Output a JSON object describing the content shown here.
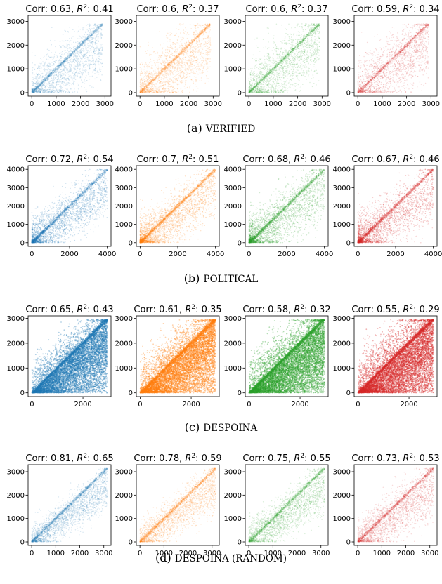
{
  "figure": {
    "rows": [
      {
        "caption_prefix": "(a) ",
        "caption_name": "VERIFIED"
      },
      {
        "caption_prefix": "(b) ",
        "caption_name": "POLITICAL"
      },
      {
        "caption_prefix": "(c) ",
        "caption_name": "DESPOINA"
      },
      {
        "caption_prefix": "(d) ",
        "caption_name": "DESPOINA (RANDOM)"
      }
    ],
    "colors": [
      "#1f77b4",
      "#ff7f0e",
      "#2ca02c",
      "#d62728"
    ]
  },
  "chart_data": [
    {
      "type": "scatter",
      "row": 0,
      "col": 0,
      "color": "#1f77b4",
      "title_prefix": "Corr: 0.63, ",
      "title_sup_var": "R",
      "title_exp": "2",
      "title_suffix": ": 0.41",
      "corr": 0.63,
      "r2": 0.41,
      "xlim": [
        -150,
        3250
      ],
      "ylim": [
        -150,
        3250
      ],
      "xticks": [
        "0",
        "1000",
        "2000",
        "3000"
      ],
      "yticks": [
        "0",
        "1000",
        "2000",
        "3000"
      ],
      "x_tick_values": [
        0,
        1000,
        2000,
        3000
      ],
      "y_tick_values": [
        0,
        1000,
        2000,
        3000
      ],
      "n_points": 2500,
      "max_value": 2900
    },
    {
      "type": "scatter",
      "row": 0,
      "col": 1,
      "color": "#ff7f0e",
      "title_prefix": "Corr: 0.6, ",
      "title_sup_var": "R",
      "title_exp": "2",
      "title_suffix": ": 0.37",
      "corr": 0.6,
      "r2": 0.37,
      "xlim": [
        -150,
        3250
      ],
      "ylim": [
        -150,
        3250
      ],
      "xticks": [
        "0",
        "1000",
        "2000",
        "3000"
      ],
      "yticks": [
        "0",
        "1000",
        "2000",
        "3000"
      ],
      "x_tick_values": [
        0,
        1000,
        2000,
        3000
      ],
      "y_tick_values": [
        0,
        1000,
        2000,
        3000
      ],
      "n_points": 2500,
      "max_value": 2900
    },
    {
      "type": "scatter",
      "row": 0,
      "col": 2,
      "color": "#2ca02c",
      "title_prefix": "Corr: 0.6, ",
      "title_sup_var": "R",
      "title_exp": "2",
      "title_suffix": ": 0.37",
      "corr": 0.6,
      "r2": 0.37,
      "xlim": [
        -150,
        3250
      ],
      "ylim": [
        -150,
        3250
      ],
      "xticks": [
        "0",
        "1000",
        "2000",
        "3000"
      ],
      "yticks": [
        "0",
        "1000",
        "2000",
        "3000"
      ],
      "x_tick_values": [
        0,
        1000,
        2000,
        3000
      ],
      "y_tick_values": [
        0,
        1000,
        2000,
        3000
      ],
      "n_points": 2500,
      "max_value": 2900
    },
    {
      "type": "scatter",
      "row": 0,
      "col": 3,
      "color": "#d62728",
      "title_prefix": "Corr: 0.59, ",
      "title_sup_var": "R",
      "title_exp": "2",
      "title_suffix": ": 0.34",
      "corr": 0.59,
      "r2": 0.34,
      "xlim": [
        -150,
        3250
      ],
      "ylim": [
        -150,
        3250
      ],
      "xticks": [
        "0",
        "1000",
        "2000",
        "3000"
      ],
      "yticks": [
        "0",
        "1000",
        "2000",
        "3000"
      ],
      "x_tick_values": [
        0,
        1000,
        2000,
        3000
      ],
      "y_tick_values": [
        0,
        1000,
        2000,
        3000
      ],
      "n_points": 2500,
      "max_value": 2900
    },
    {
      "type": "scatter",
      "row": 1,
      "col": 0,
      "color": "#1f77b4",
      "title_prefix": "Corr: 0.72, ",
      "title_sup_var": "R",
      "title_exp": "2",
      "title_suffix": ": 0.54",
      "corr": 0.72,
      "r2": 0.54,
      "xlim": [
        -200,
        4200
      ],
      "ylim": [
        -200,
        4200
      ],
      "xticks": [
        "0",
        "2000",
        "4000"
      ],
      "yticks": [
        "0",
        "1000",
        "2000",
        "3000",
        "4000"
      ],
      "x_tick_values": [
        0,
        2000,
        4000
      ],
      "y_tick_values": [
        0,
        1000,
        2000,
        3000,
        4000
      ],
      "n_points": 3500,
      "max_value": 4000
    },
    {
      "type": "scatter",
      "row": 1,
      "col": 1,
      "color": "#ff7f0e",
      "title_prefix": "Corr: 0.7, ",
      "title_sup_var": "R",
      "title_exp": "2",
      "title_suffix": ": 0.51",
      "corr": 0.7,
      "r2": 0.51,
      "xlim": [
        -200,
        4200
      ],
      "ylim": [
        -200,
        4200
      ],
      "xticks": [
        "0",
        "2000",
        "4000"
      ],
      "yticks": [
        "0",
        "1000",
        "2000",
        "3000",
        "4000"
      ],
      "x_tick_values": [
        0,
        2000,
        4000
      ],
      "y_tick_values": [
        0,
        1000,
        2000,
        3000,
        4000
      ],
      "n_points": 3500,
      "max_value": 4000
    },
    {
      "type": "scatter",
      "row": 1,
      "col": 2,
      "color": "#2ca02c",
      "title_prefix": "Corr: 0.68, ",
      "title_sup_var": "R",
      "title_exp": "2",
      "title_suffix": ": 0.46",
      "corr": 0.68,
      "r2": 0.46,
      "xlim": [
        -200,
        4200
      ],
      "ylim": [
        -200,
        4200
      ],
      "xticks": [
        "0",
        "2000",
        "4000"
      ],
      "yticks": [
        "0",
        "1000",
        "2000",
        "3000",
        "4000"
      ],
      "x_tick_values": [
        0,
        2000,
        4000
      ],
      "y_tick_values": [
        0,
        1000,
        2000,
        3000,
        4000
      ],
      "n_points": 3500,
      "max_value": 4000
    },
    {
      "type": "scatter",
      "row": 1,
      "col": 3,
      "color": "#d62728",
      "title_prefix": "Corr: 0.67, ",
      "title_sup_var": "R",
      "title_exp": "2",
      "title_suffix": ": 0.46",
      "corr": 0.67,
      "r2": 0.46,
      "xlim": [
        -200,
        4200
      ],
      "ylim": [
        -200,
        4200
      ],
      "xticks": [
        "0",
        "2000",
        "4000"
      ],
      "yticks": [
        "0",
        "1000",
        "2000",
        "3000",
        "4000"
      ],
      "x_tick_values": [
        0,
        2000,
        4000
      ],
      "y_tick_values": [
        0,
        1000,
        2000,
        3000,
        4000
      ],
      "n_points": 3500,
      "max_value": 4000
    },
    {
      "type": "scatter",
      "row": 2,
      "col": 0,
      "color": "#1f77b4",
      "title_prefix": "Corr: 0.65, ",
      "title_sup_var": "R",
      "title_exp": "2",
      "title_suffix": ": 0.43",
      "corr": 0.65,
      "r2": 0.43,
      "xlim": [
        -150,
        3100
      ],
      "ylim": [
        -150,
        3100
      ],
      "xticks": [
        "0",
        "2000"
      ],
      "yticks": [
        "0",
        "1000",
        "2000",
        "3000"
      ],
      "x_tick_values": [
        0,
        2000
      ],
      "y_tick_values": [
        0,
        1000,
        2000,
        3000
      ],
      "n_points": 9000,
      "max_value": 2950
    },
    {
      "type": "scatter",
      "row": 2,
      "col": 1,
      "color": "#ff7f0e",
      "title_prefix": "Corr: 0.61, ",
      "title_sup_var": "R",
      "title_exp": "2",
      "title_suffix": ": 0.35",
      "corr": 0.61,
      "r2": 0.35,
      "xlim": [
        -150,
        3100
      ],
      "ylim": [
        -150,
        3100
      ],
      "xticks": [
        "0",
        "2000"
      ],
      "yticks": [
        "0",
        "1000",
        "2000",
        "3000"
      ],
      "x_tick_values": [
        0,
        2000
      ],
      "y_tick_values": [
        0,
        1000,
        2000,
        3000
      ],
      "n_points": 9000,
      "max_value": 2950
    },
    {
      "type": "scatter",
      "row": 2,
      "col": 2,
      "color": "#2ca02c",
      "title_prefix": "Corr: 0.58, ",
      "title_sup_var": "R",
      "title_exp": "2",
      "title_suffix": ": 0.32",
      "corr": 0.58,
      "r2": 0.32,
      "xlim": [
        -150,
        3100
      ],
      "ylim": [
        -150,
        3100
      ],
      "xticks": [
        "0",
        "2000"
      ],
      "yticks": [
        "0",
        "1000",
        "2000",
        "3000"
      ],
      "x_tick_values": [
        0,
        2000
      ],
      "y_tick_values": [
        0,
        1000,
        2000,
        3000
      ],
      "n_points": 9000,
      "max_value": 2950
    },
    {
      "type": "scatter",
      "row": 2,
      "col": 3,
      "color": "#d62728",
      "title_prefix": "Corr: 0.55, ",
      "title_sup_var": "R",
      "title_exp": "2",
      "title_suffix": ": 0.29",
      "corr": 0.55,
      "r2": 0.29,
      "xlim": [
        -150,
        3100
      ],
      "ylim": [
        -150,
        3100
      ],
      "xticks": [
        "0",
        "2000"
      ],
      "yticks": [
        "0",
        "1000",
        "2000",
        "3000"
      ],
      "x_tick_values": [
        0,
        2000
      ],
      "y_tick_values": [
        0,
        1000,
        2000,
        3000
      ],
      "n_points": 9000,
      "max_value": 2950
    },
    {
      "type": "scatter",
      "row": 3,
      "col": 0,
      "color": "#1f77b4",
      "title_prefix": "Corr: 0.81, ",
      "title_sup_var": "R",
      "title_exp": "2",
      "title_suffix": ": 0.65",
      "corr": 0.81,
      "r2": 0.65,
      "xlim": [
        -150,
        3300
      ],
      "ylim": [
        -150,
        3300
      ],
      "xticks": [
        "0",
        "1000",
        "2000",
        "3000"
      ],
      "yticks": [
        "0",
        "1000",
        "2000",
        "3000"
      ],
      "x_tick_values": [
        0,
        1000,
        2000,
        3000
      ],
      "y_tick_values": [
        0,
        1000,
        2000,
        3000
      ],
      "n_points": 3000,
      "max_value": 3150
    },
    {
      "type": "scatter",
      "row": 3,
      "col": 1,
      "color": "#ff7f0e",
      "title_prefix": "Corr: 0.78, ",
      "title_sup_var": "R",
      "title_exp": "2",
      "title_suffix": ": 0.59",
      "corr": 0.78,
      "r2": 0.59,
      "xlim": [
        -150,
        3300
      ],
      "ylim": [
        -150,
        3300
      ],
      "xticks": [
        "0",
        "1000",
        "2000",
        "3000"
      ],
      "yticks": [
        "0",
        "1000",
        "2000",
        "3000"
      ],
      "x_tick_values": [
        0,
        1000,
        2000,
        3000
      ],
      "y_tick_values": [
        0,
        1000,
        2000,
        3000
      ],
      "n_points": 3000,
      "max_value": 3150
    },
    {
      "type": "scatter",
      "row": 3,
      "col": 2,
      "color": "#2ca02c",
      "title_prefix": "Corr: 0.75, ",
      "title_sup_var": "R",
      "title_exp": "2",
      "title_suffix": ": 0.55",
      "corr": 0.75,
      "r2": 0.55,
      "xlim": [
        -150,
        3300
      ],
      "ylim": [
        -150,
        3300
      ],
      "xticks": [
        "0",
        "1000",
        "2000",
        "3000"
      ],
      "yticks": [
        "0",
        "1000",
        "2000",
        "3000"
      ],
      "x_tick_values": [
        0,
        1000,
        2000,
        3000
      ],
      "y_tick_values": [
        0,
        1000,
        2000,
        3000
      ],
      "n_points": 3000,
      "max_value": 3150
    },
    {
      "type": "scatter",
      "row": 3,
      "col": 3,
      "color": "#d62728",
      "title_prefix": "Corr: 0.73, ",
      "title_sup_var": "R",
      "title_exp": "2",
      "title_suffix": ": 0.53",
      "corr": 0.73,
      "r2": 0.53,
      "xlim": [
        -150,
        3300
      ],
      "ylim": [
        -150,
        3300
      ],
      "xticks": [
        "0",
        "1000",
        "2000",
        "3000"
      ],
      "yticks": [
        "0",
        "1000",
        "2000",
        "3000"
      ],
      "x_tick_values": [
        0,
        1000,
        2000,
        3000
      ],
      "y_tick_values": [
        0,
        1000,
        2000,
        3000
      ],
      "n_points": 3000,
      "max_value": 3150
    }
  ]
}
